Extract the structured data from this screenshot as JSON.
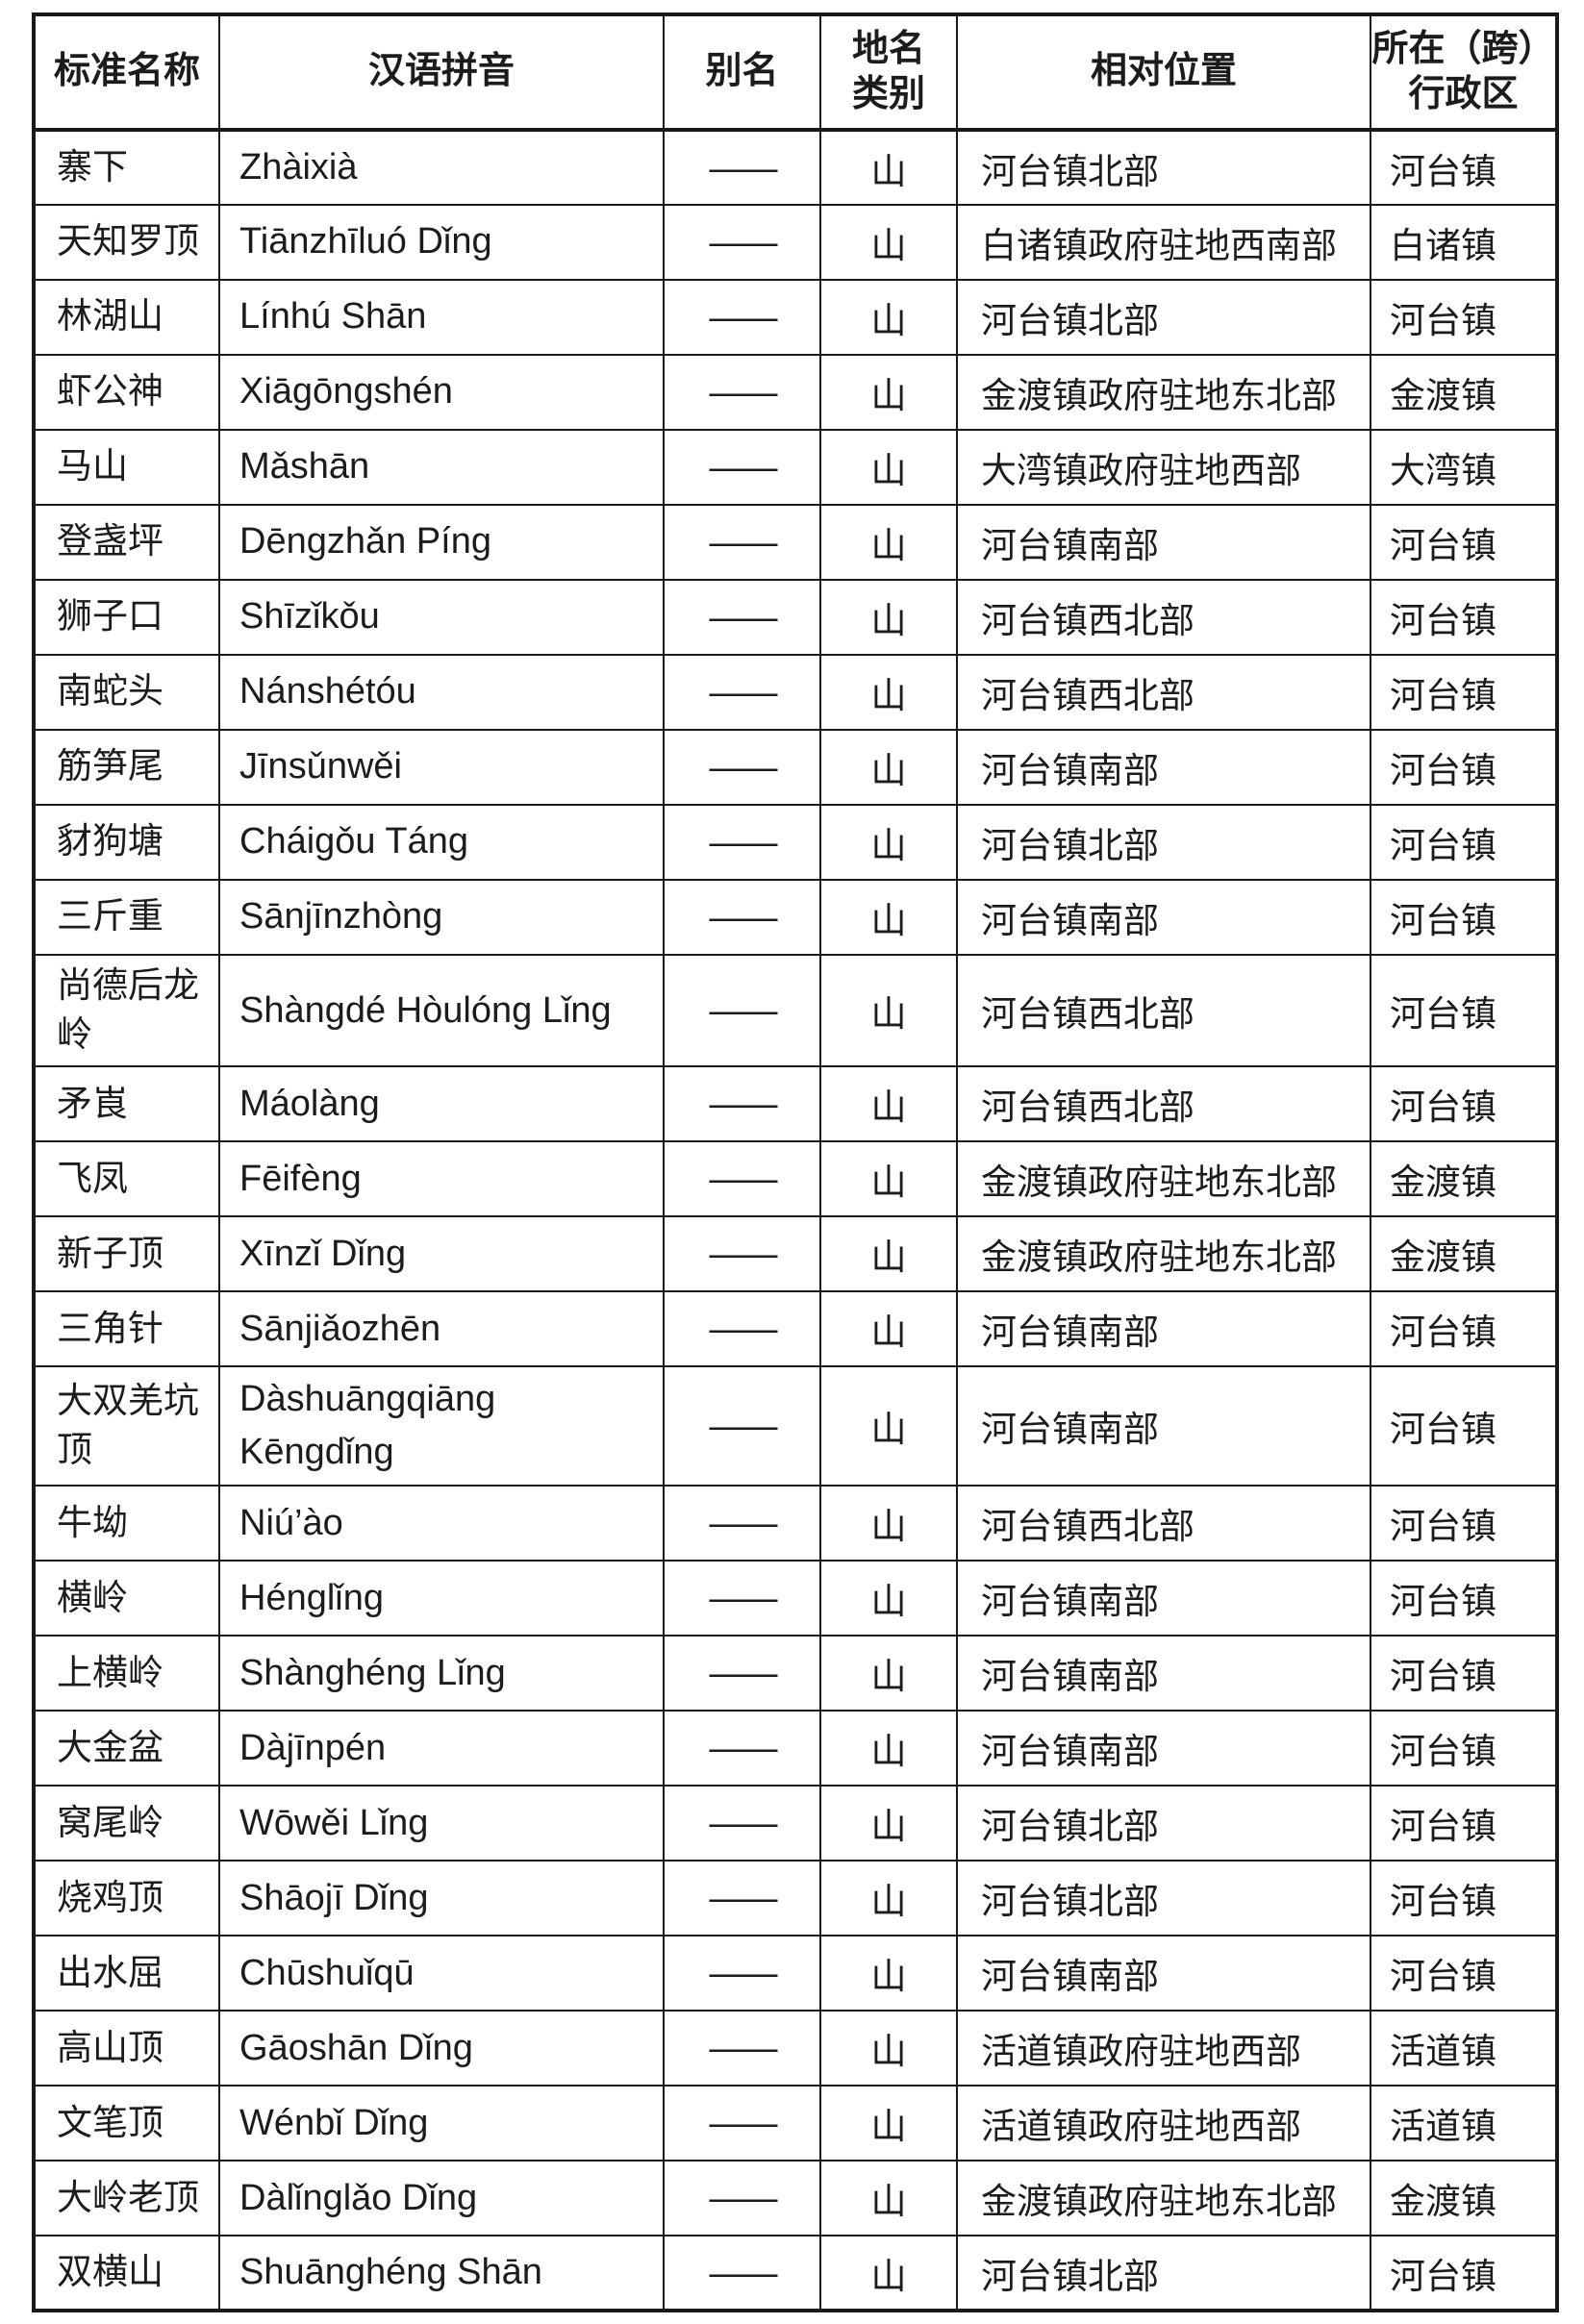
{
  "table": {
    "headers": [
      "标准名称",
      "汉语拼音",
      "别名",
      "地名\n类别",
      "相对位置",
      "所在（跨）\n行政区"
    ],
    "rows": [
      {
        "name": "寨下",
        "pinyin": "Zhàixià",
        "alias": "——",
        "category": "山",
        "position": "河台镇北部",
        "district": "河台镇"
      },
      {
        "name": "天知罗顶",
        "pinyin": "Tiānzhīluó Dǐng",
        "alias": "——",
        "category": "山",
        "position": "白诸镇政府驻地西南部",
        "district": "白诸镇"
      },
      {
        "name": "林湖山",
        "pinyin": "Línhú Shān",
        "alias": "——",
        "category": "山",
        "position": "河台镇北部",
        "district": "河台镇"
      },
      {
        "name": "虾公神",
        "pinyin": "Xiāgōngshén",
        "alias": "——",
        "category": "山",
        "position": "金渡镇政府驻地东北部",
        "district": "金渡镇"
      },
      {
        "name": "马山",
        "pinyin": "Mǎshān",
        "alias": "——",
        "category": "山",
        "position": "大湾镇政府驻地西部",
        "district": "大湾镇"
      },
      {
        "name": "登盏坪",
        "pinyin": "Dēngzhǎn Píng",
        "alias": "——",
        "category": "山",
        "position": "河台镇南部",
        "district": "河台镇"
      },
      {
        "name": "狮子口",
        "pinyin": "Shīzǐkǒu",
        "alias": "——",
        "category": "山",
        "position": "河台镇西北部",
        "district": "河台镇"
      },
      {
        "name": "南蛇头",
        "pinyin": "Nánshétóu",
        "alias": "——",
        "category": "山",
        "position": "河台镇西北部",
        "district": "河台镇"
      },
      {
        "name": "筋笋尾",
        "pinyin": "Jīnsǔnwěi",
        "alias": "——",
        "category": "山",
        "position": "河台镇南部",
        "district": "河台镇"
      },
      {
        "name": "豺狗塘",
        "pinyin": "Cháigǒu Táng",
        "alias": "——",
        "category": "山",
        "position": "河台镇北部",
        "district": "河台镇"
      },
      {
        "name": "三斤重",
        "pinyin": "Sānjīnzhòng",
        "alias": "——",
        "category": "山",
        "position": "河台镇南部",
        "district": "河台镇"
      },
      {
        "name": "尚德后龙岭",
        "pinyin": "Shàngdé Hòulóng Lǐng",
        "alias": "——",
        "category": "山",
        "position": "河台镇西北部",
        "district": "河台镇"
      },
      {
        "name": "矛崀",
        "pinyin": "Máolàng",
        "alias": "——",
        "category": "山",
        "position": "河台镇西北部",
        "district": "河台镇"
      },
      {
        "name": "飞凤",
        "pinyin": "Fēifèng",
        "alias": "——",
        "category": "山",
        "position": "金渡镇政府驻地东北部",
        "district": "金渡镇"
      },
      {
        "name": "新子顶",
        "pinyin": "Xīnzǐ Dǐng",
        "alias": "——",
        "category": "山",
        "position": "金渡镇政府驻地东北部",
        "district": "金渡镇"
      },
      {
        "name": "三角针",
        "pinyin": "Sānjiǎozhēn",
        "alias": "——",
        "category": "山",
        "position": "河台镇南部",
        "district": "河台镇"
      },
      {
        "name": "大双羌坑顶",
        "pinyin": "Dàshuāngqiāng\nKēngdǐng",
        "alias": "——",
        "category": "山",
        "position": "河台镇南部",
        "district": "河台镇"
      },
      {
        "name": "牛坳",
        "pinyin": "Niú’ào",
        "alias": "——",
        "category": "山",
        "position": "河台镇西北部",
        "district": "河台镇"
      },
      {
        "name": "横岭",
        "pinyin": "Hénglǐng",
        "alias": "——",
        "category": "山",
        "position": "河台镇南部",
        "district": "河台镇"
      },
      {
        "name": "上横岭",
        "pinyin": "Shànghéng Lǐng",
        "alias": "——",
        "category": "山",
        "position": "河台镇南部",
        "district": "河台镇"
      },
      {
        "name": "大金盆",
        "pinyin": "Dàjīnpén",
        "alias": "——",
        "category": "山",
        "position": "河台镇南部",
        "district": "河台镇"
      },
      {
        "name": "窝尾岭",
        "pinyin": "Wōwěi Lǐng",
        "alias": "——",
        "category": "山",
        "position": "河台镇北部",
        "district": "河台镇"
      },
      {
        "name": "烧鸡顶",
        "pinyin": "Shāojī Dǐng",
        "alias": "——",
        "category": "山",
        "position": "河台镇北部",
        "district": "河台镇"
      },
      {
        "name": "出水屈",
        "pinyin": "Chūshuǐqū",
        "alias": "——",
        "category": "山",
        "position": "河台镇南部",
        "district": "河台镇"
      },
      {
        "name": "高山顶",
        "pinyin": "Gāoshān Dǐng",
        "alias": "——",
        "category": "山",
        "position": "活道镇政府驻地西部",
        "district": "活道镇"
      },
      {
        "name": "文笔顶",
        "pinyin": "Wénbǐ Dǐng",
        "alias": "——",
        "category": "山",
        "position": "活道镇政府驻地西部",
        "district": "活道镇"
      },
      {
        "name": "大岭老顶",
        "pinyin": "Dàlǐnglǎo Dǐng",
        "alias": "——",
        "category": "山",
        "position": "金渡镇政府驻地东北部",
        "district": "金渡镇"
      },
      {
        "name": "双横山",
        "pinyin": "Shuānghéng Shān",
        "alias": "——",
        "category": "山",
        "position": "河台镇北部",
        "district": "河台镇"
      }
    ]
  }
}
